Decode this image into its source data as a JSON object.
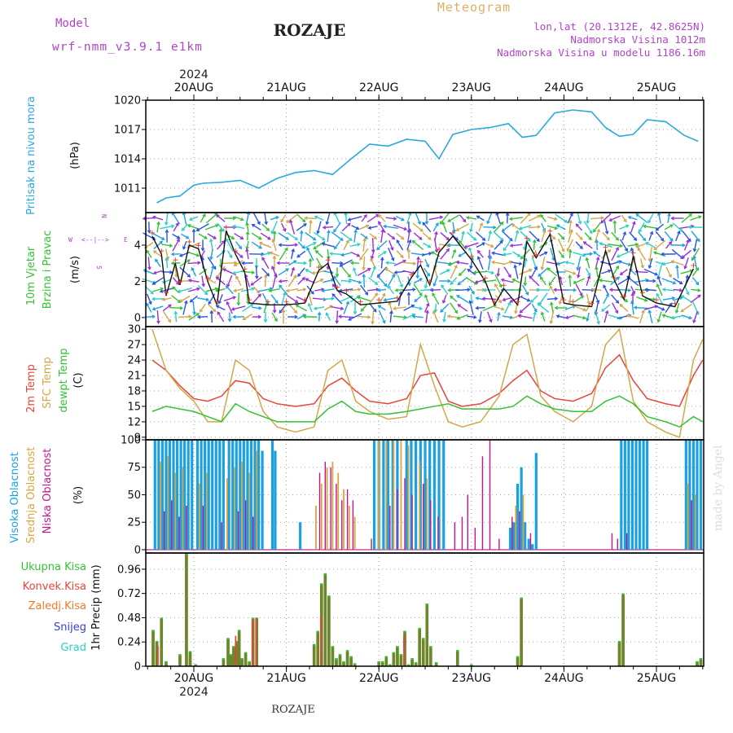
{
  "header": {
    "model_label": "Model",
    "model_name": "wrf-nmm_v3.9.1  e1km",
    "station": "ROZAJE",
    "meteogram": "Meteogram",
    "lonlat": "lon,lat (20.1312E, 42.8625N)",
    "elevation": "Nadmorska Visina 1012m",
    "model_elevation": "Nadmorska Visina u modelu 1186.16m",
    "year_top": "2024",
    "year_bottom": "2024",
    "footer_station": "ROZAJE",
    "watermark": "made by Angel"
  },
  "colors": {
    "pressure": "#29a9e0",
    "temp2m": "#e8443a",
    "sfc": "#d4a64a",
    "dewpt": "#33c233",
    "high_cloud": "#1ba1e2",
    "mid_cloud": "#d9a640",
    "low_cloud": "#c0168c",
    "precip_total": "#33c233",
    "precip_conv": "#e8443a",
    "wind_label": "#33c233",
    "compass": "#b044c8"
  },
  "chart_data": [
    {
      "type": "line",
      "name": "pressure",
      "x_categories": [
        "20AUG",
        "21AUG",
        "22AUG",
        "23AUG",
        "24AUG",
        "25AUG"
      ],
      "ylabel_main": "Pritisak na nivou mora",
      "ylabel_unit": "(hPa)",
      "ylim": [
        1008.5,
        1020
      ],
      "yticks": [
        1011,
        1014,
        1017,
        1020
      ],
      "series": [
        {
          "name": "Pritisak na nivou mora",
          "x": [
            -0.4,
            -0.3,
            -0.15,
            0,
            0.1,
            0.3,
            0.5,
            0.7,
            0.9,
            1.1,
            1.3,
            1.5,
            1.7,
            1.9,
            2.1,
            2.3,
            2.5,
            2.65,
            2.8,
            3.0,
            3.2,
            3.4,
            3.55,
            3.7,
            3.9,
            4.1,
            4.3,
            4.45,
            4.6,
            4.75,
            4.9,
            5.1,
            5.3,
            5.45
          ],
          "values": [
            1009.5,
            1010,
            1010.2,
            1011.3,
            1011.5,
            1011.6,
            1011.8,
            1011.0,
            1012.0,
            1012.6,
            1012.8,
            1012.4,
            1014.0,
            1015.5,
            1015.3,
            1016.0,
            1015.8,
            1014.0,
            1016.5,
            1017.0,
            1017.2,
            1017.6,
            1016.2,
            1016.4,
            1018.7,
            1019.0,
            1018.8,
            1017.2,
            1016.3,
            1016.5,
            1018.0,
            1017.8,
            1016.4,
            1015.8
          ]
        }
      ]
    },
    {
      "type": "line",
      "name": "wind",
      "ylabel_main": "10m Vjetar",
      "ylabel_sub": "Brzina i Pravac",
      "ylabel_unit": "(m/s)",
      "compass": {
        "n": "N",
        "s": "S",
        "w": "W",
        "e": "E"
      },
      "ylim": [
        -0.5,
        5.8
      ],
      "yticks": [
        0,
        2,
        4
      ],
      "series": [
        {
          "name": "speed",
          "x": [
            -0.45,
            -0.35,
            -0.3,
            -0.2,
            -0.15,
            -0.05,
            0.05,
            0.15,
            0.25,
            0.35,
            0.45,
            0.55,
            0.6,
            0.8,
            1.0,
            1.2,
            1.35,
            1.45,
            1.55,
            1.65,
            1.8,
            2.0,
            2.2,
            2.35,
            2.45,
            2.55,
            2.65,
            2.8,
            3.0,
            3.15,
            3.25,
            3.35,
            3.5,
            3.6,
            3.7,
            3.85,
            4.0,
            4.1,
            4.3,
            4.45,
            4.55,
            4.65,
            4.75,
            4.85,
            5.0,
            5.2,
            5.4
          ],
          "values": [
            4.5,
            3.5,
            1.2,
            3.0,
            1.8,
            4.0,
            3.8,
            2.0,
            0.7,
            4.8,
            3.5,
            2.5,
            0.8,
            0.7,
            0.7,
            0.8,
            2.6,
            3.0,
            1.5,
            1.3,
            0.7,
            0.8,
            0.9,
            2.2,
            2.9,
            1.8,
            3.6,
            4.5,
            3.2,
            2.0,
            0.7,
            1.6,
            0.7,
            4.2,
            3.3,
            4.6,
            0.8,
            0.7,
            0.6,
            3.7,
            2.0,
            1.0,
            3.4,
            1.2,
            0.8,
            0.6,
            2.7
          ]
        }
      ]
    },
    {
      "type": "line",
      "name": "temperature",
      "ylabel_lines": [
        "2m Temp",
        "SFC Temp",
        "dewpt Temp"
      ],
      "ylabel_unit": "(C)",
      "ylim": [
        8.5,
        30.5
      ],
      "yticks": [
        9,
        12,
        15,
        18,
        21,
        24,
        27,
        30
      ],
      "x": [
        -0.45,
        -0.3,
        -0.15,
        0,
        0.15,
        0.3,
        0.45,
        0.6,
        0.75,
        0.9,
        1.1,
        1.3,
        1.45,
        1.6,
        1.75,
        1.9,
        2.1,
        2.3,
        2.45,
        2.6,
        2.75,
        2.9,
        3.1,
        3.3,
        3.45,
        3.6,
        3.75,
        3.9,
        4.1,
        4.3,
        4.45,
        4.6,
        4.75,
        4.9,
        5.1,
        5.25,
        5.4,
        5.5
      ],
      "series": [
        {
          "name": "2m Temp",
          "values": [
            24,
            22,
            19,
            16.5,
            16,
            17,
            20,
            19.5,
            16.5,
            15.5,
            15,
            15.5,
            19,
            20.5,
            18,
            16,
            15.5,
            16.5,
            21,
            21.5,
            16,
            15,
            15.5,
            17.5,
            20,
            22,
            18,
            16.5,
            16,
            17.5,
            22.5,
            25,
            20,
            16.5,
            15.5,
            15,
            21,
            24
          ]
        },
        {
          "name": "SFC Temp",
          "values": [
            30,
            22,
            18.5,
            16,
            12,
            12,
            24,
            22,
            14,
            11,
            10,
            11,
            22,
            24,
            16,
            14,
            12.5,
            13,
            27,
            19,
            12,
            11,
            12,
            17,
            27,
            29,
            17,
            14,
            12,
            15,
            27,
            30,
            16,
            12,
            10,
            9,
            24,
            28
          ]
        },
        {
          "name": "dewpt Temp",
          "values": [
            14,
            15,
            14.5,
            14,
            13,
            12,
            15.5,
            14,
            13,
            12,
            12,
            12,
            14.5,
            16,
            14,
            13.5,
            13.5,
            14,
            14.5,
            15,
            15.5,
            14.5,
            14.5,
            14.5,
            15,
            17,
            15.5,
            14.5,
            14,
            14,
            16,
            17,
            15.5,
            13,
            12,
            11,
            13,
            12
          ]
        }
      ]
    },
    {
      "type": "bar",
      "name": "cloud",
      "ylabel_lines": [
        "Visoka Oblacnost",
        "Srednja Oblacnost",
        "Niska Oblacnost"
      ],
      "ylabel_unit": "(%)",
      "ylim": [
        -3,
        100
      ],
      "yticks": [
        0,
        25,
        50,
        75,
        100
      ],
      "series": [
        {
          "name": "Visoka Oblacnost",
          "x": [
            -0.42,
            -0.38,
            -0.34,
            -0.3,
            -0.26,
            -0.22,
            -0.18,
            -0.14,
            -0.1,
            -0.06,
            -0.02,
            0.04,
            0.08,
            0.12,
            0.16,
            0.2,
            0.24,
            0.28,
            0.32,
            0.38,
            0.42,
            0.46,
            0.5,
            0.54,
            0.58,
            0.62,
            0.66,
            0.7,
            0.74,
            0.85,
            0.88,
            1.15,
            1.95,
            2.0,
            2.05,
            2.1,
            2.15,
            2.2,
            2.3,
            2.35,
            2.4,
            2.45,
            2.5,
            2.55,
            2.6,
            2.65,
            2.7,
            3.42,
            3.46,
            3.5,
            3.54,
            3.58,
            3.62,
            3.66,
            3.7,
            4.62,
            4.66,
            4.7,
            4.74,
            4.78,
            4.82,
            4.86,
            4.9,
            5.32,
            5.36,
            5.4,
            5.44,
            5.48
          ],
          "values": [
            100,
            100,
            100,
            100,
            100,
            100,
            100,
            100,
            100,
            100,
            100,
            100,
            100,
            100,
            100,
            100,
            100,
            100,
            100,
            100,
            100,
            100,
            100,
            100,
            100,
            100,
            100,
            100,
            90,
            100,
            90,
            25,
            100,
            100,
            100,
            100,
            100,
            100,
            100,
            100,
            100,
            100,
            100,
            100,
            100,
            100,
            100,
            20,
            25,
            60,
            75,
            25,
            10,
            5,
            88,
            100,
            100,
            100,
            100,
            100,
            100,
            100,
            100,
            100,
            100,
            100,
            100,
            100
          ]
        },
        {
          "name": "Srednja Oblacnost",
          "x": [
            -0.36,
            -0.28,
            -0.2,
            -0.12,
            0.06,
            0.14,
            0.36,
            0.44,
            0.52,
            0.6,
            0.68,
            1.32,
            1.38,
            1.44,
            1.5,
            1.56,
            1.62,
            1.68,
            1.74,
            2.0,
            2.08,
            2.16,
            2.24,
            2.32,
            2.44,
            2.52,
            3.48,
            3.56,
            5.34,
            5.42
          ],
          "values": [
            80,
            85,
            70,
            75,
            60,
            70,
            65,
            75,
            80,
            70,
            90,
            40,
            60,
            75,
            80,
            70,
            55,
            40,
            30,
            100,
            100,
            100,
            100,
            95,
            80,
            65,
            40,
            50,
            60,
            50
          ]
        },
        {
          "name": "Niska Oblacnost",
          "x": [
            -0.32,
            -0.24,
            -0.16,
            -0.08,
            0.1,
            0.3,
            0.48,
            0.56,
            0.64,
            1.36,
            1.42,
            1.48,
            1.54,
            1.6,
            1.66,
            1.72,
            1.92,
            2.12,
            2.2,
            2.28,
            2.36,
            2.48,
            2.56,
            2.64,
            2.82,
            2.9,
            2.96,
            3.04,
            3.12,
            3.2,
            3.3,
            3.44,
            3.52,
            3.64,
            4.52,
            4.58,
            4.68,
            5.38
          ],
          "values": [
            35,
            45,
            30,
            40,
            40,
            25,
            35,
            45,
            30,
            70,
            80,
            75,
            60,
            45,
            55,
            45,
            10,
            40,
            55,
            65,
            50,
            60,
            45,
            30,
            25,
            30,
            50,
            20,
            85,
            100,
            10,
            30,
            35,
            15,
            15,
            10,
            15,
            45
          ]
        }
      ]
    },
    {
      "type": "bar",
      "name": "precipitation",
      "ylabel_main": "1hr Precip",
      "ylabel_unit": "(mm)",
      "legend": [
        "Ukupna Kisa",
        "Konvek.Kisa",
        "Zaledj.Kisa",
        "Snijeg",
        "Grad"
      ],
      "legend_colors": [
        "#33c233",
        "#e8443a",
        "#ec7a2a",
        "#3a3ae0",
        "#2ad0c8"
      ],
      "ylim": [
        0,
        1.12
      ],
      "yticks": [
        0,
        0.24,
        0.48,
        0.72,
        0.96
      ],
      "series": [
        {
          "name": "Ukupna Kisa",
          "x": [
            -0.44,
            -0.4,
            -0.35,
            -0.3,
            -0.15,
            -0.08,
            -0.04,
            0.02,
            0.32,
            0.37,
            0.4,
            0.43,
            0.46,
            0.49,
            0.52,
            0.56,
            0.6,
            0.64,
            0.68,
            1.3,
            1.34,
            1.38,
            1.42,
            1.46,
            1.5,
            1.54,
            1.58,
            1.62,
            1.66,
            1.7,
            1.74,
            2.0,
            2.04,
            2.08,
            2.12,
            2.16,
            2.2,
            2.24,
            2.28,
            2.32,
            2.36,
            2.4,
            2.44,
            2.48,
            2.52,
            2.56,
            2.62,
            2.85,
            3.0,
            3.5,
            3.54,
            4.6,
            4.64,
            5.44,
            5.48
          ],
          "values": [
            0.36,
            0.25,
            0.48,
            0.05,
            0.12,
            1.12,
            0.15,
            0.02,
            0.08,
            0.28,
            0.12,
            0.2,
            0.25,
            0.36,
            0.08,
            0.14,
            0.05,
            0.48,
            0.48,
            0.22,
            0.35,
            0.82,
            0.92,
            0.7,
            0.2,
            0.08,
            0.12,
            0.05,
            0.16,
            0.1,
            0.03,
            0.05,
            0.05,
            0.1,
            0.02,
            0.14,
            0.2,
            0.12,
            0.35,
            0.02,
            0.08,
            0.04,
            0.38,
            0.28,
            0.62,
            0.2,
            0.04,
            0.16,
            0.02,
            0.1,
            0.68,
            0.25,
            0.72,
            0.05,
            0.08
          ]
        },
        {
          "name": "Konvek.Kisa",
          "x": [
            -0.4,
            0.44,
            0.62,
            0.66,
            1.36,
            2.26
          ],
          "values": [
            0.2,
            0.3,
            0.46,
            0.48,
            0.5,
            0.3
          ]
        }
      ]
    }
  ]
}
